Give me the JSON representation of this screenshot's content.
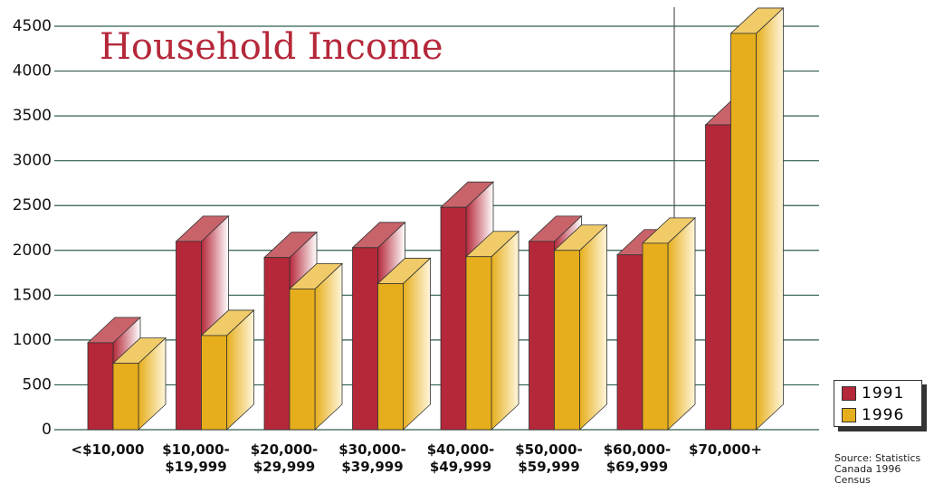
{
  "chart_data": {
    "type": "bar3d",
    "title": "Household Income",
    "categories": [
      "<$10,000",
      "$10,000-\n$19,999",
      "$20,000-\n$29,999",
      "$30,000-\n$39,999",
      "$40,000-\n$49,999",
      "$50,000-\n$59,999",
      "$60,000-\n$69,999",
      "$70,000+"
    ],
    "series": [
      {
        "name": "1991",
        "color": "#b5283a",
        "values": [
          970,
          2100,
          1920,
          2030,
          2480,
          2100,
          1950,
          3400
        ]
      },
      {
        "name": "1996",
        "color": "#e6ae1c",
        "values": [
          740,
          1050,
          1570,
          1630,
          1930,
          2000,
          2080,
          4420
        ]
      }
    ],
    "ylim": [
      0,
      4500
    ],
    "yticks": [
      0,
      500,
      1000,
      1500,
      2000,
      2500,
      3000,
      3500,
      4000,
      4500
    ],
    "grid": true,
    "legend": "lower right",
    "source": "Source: Statistics Canada 1996 Census"
  }
}
